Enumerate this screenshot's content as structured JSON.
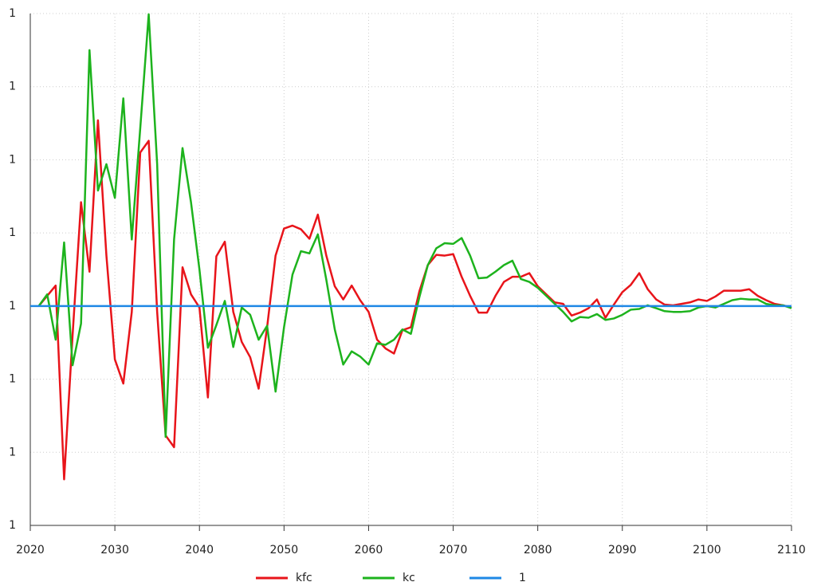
{
  "chart_data": {
    "type": "line",
    "x": [
      2020,
      2021,
      2022,
      2023,
      2024,
      2025,
      2026,
      2027,
      2028,
      2029,
      2030,
      2031,
      2032,
      2033,
      2034,
      2035,
      2036,
      2037,
      2038,
      2039,
      2040,
      2041,
      2042,
      2043,
      2044,
      2045,
      2046,
      2047,
      2048,
      2049,
      2050,
      2051,
      2052,
      2053,
      2054,
      2055,
      2056,
      2057,
      2058,
      2059,
      2060,
      2061,
      2062,
      2063,
      2064,
      2065,
      2066,
      2067,
      2068,
      2069,
      2070,
      2071,
      2072,
      2073,
      2074,
      2075,
      2076,
      2077,
      2078,
      2079,
      2080,
      2081,
      2082,
      2083,
      2084,
      2085,
      2086,
      2087,
      2088,
      2089,
      2090,
      2091,
      2092,
      2093,
      2094,
      2095,
      2096,
      2097,
      2098,
      2099,
      2100,
      2101,
      2102,
      2103,
      2104,
      2105,
      2106,
      2107,
      2108,
      2109,
      2110
    ],
    "series": [
      {
        "name": "kfc",
        "color": "#e8141a",
        "values": [
          null,
          1,
          1.000014,
          1.000028,
          0.999763,
          0.99996,
          1.000142,
          1.000047,
          1.000254,
          1.000069,
          0.999927,
          0.999894,
          0.999992,
          1.00021,
          1.000226,
          0.999992,
          0.999823,
          0.999807,
          1.000053,
          1.000016,
          0.999998,
          0.999875,
          1.000068,
          1.000088,
          0.999992,
          0.999951,
          0.99993,
          0.999887,
          0.999971,
          1.000069,
          1.000106,
          1.00011,
          1.000105,
          1.000092,
          1.000125,
          1.000069,
          1.000027,
          1.000009,
          1.000028,
          1.000008,
          0.999992,
          0.999954,
          0.999942,
          0.999935,
          0.999967,
          0.999971,
          1.00002,
          1.000056,
          1.00007,
          1.000069,
          1.000071,
          1.00004,
          1.000014,
          0.999991,
          0.999991,
          1.000014,
          1.000033,
          1.00004,
          1.00004,
          1.000045,
          1.000027,
          1.000016,
          1.000005,
          1.000003,
          0.999987,
          0.999991,
          0.999997,
          1.000009,
          0.999984,
          1.000002,
          1.000019,
          1.000029,
          1.000045,
          1.000023,
          1.000009,
          1.000002,
          1.000001,
          1.000003,
          1.000005,
          1.000009,
          1.000007,
          1.000013,
          1.000021,
          1.000021,
          1.000021,
          1.000023,
          1.000014,
          1.000008,
          1.000003,
          1.000001,
          0.999998
        ]
      },
      {
        "name": "kc",
        "color": "#1db31d",
        "values": [
          null,
          1,
          1.000016,
          0.999954,
          1.000087,
          0.999919,
          0.999976,
          1.00035,
          1.000158,
          1.000194,
          1.000148,
          1.000284,
          1.000091,
          1.000243,
          1.000399,
          1.000194,
          0.999821,
          1.000091,
          1.000216,
          1.000142,
          1.00005,
          0.999943,
          0.999974,
          1.000007,
          0.999944,
          0.999998,
          0.999988,
          0.999954,
          0.999973,
          0.999883,
          0.999971,
          1.000043,
          1.000075,
          1.000072,
          1.000098,
          1.000036,
          0.999968,
          0.99992,
          0.999938,
          0.999931,
          0.99992,
          0.999949,
          0.999947,
          0.999954,
          0.999968,
          0.999962,
          1.000012,
          1.000056,
          1.000079,
          1.000086,
          1.000085,
          1.000093,
          1.000069,
          1.000038,
          1.000039,
          1.000047,
          1.000056,
          1.000062,
          1.000037,
          1.000033,
          1.000025,
          1.000014,
          1.000003,
          0.999992,
          0.999979,
          0.999985,
          0.999984,
          0.999989,
          0.999981,
          0.999983,
          0.999988,
          0.999995,
          0.999996,
          1.000001,
          0.999997,
          0.999993,
          0.999992,
          0.999992,
          0.999993,
          0.999998,
          1,
          0.999998,
          1.000003,
          1.000008,
          1.00001,
          1.000009,
          1.000009,
          1.000003,
          1.000001,
          1.000001,
          0.999997
        ]
      },
      {
        "name": "1",
        "color": "#1e88e5",
        "values": [
          1,
          1,
          1,
          1,
          1,
          1,
          1,
          1,
          1,
          1,
          1,
          1,
          1,
          1,
          1,
          1,
          1,
          1,
          1,
          1,
          1,
          1,
          1,
          1,
          1,
          1,
          1,
          1,
          1,
          1,
          1,
          1,
          1,
          1,
          1,
          1,
          1,
          1,
          1,
          1,
          1,
          1,
          1,
          1,
          1,
          1,
          1,
          1,
          1,
          1,
          1,
          1,
          1,
          1,
          1,
          1,
          1,
          1,
          1,
          1,
          1,
          1,
          1,
          1,
          1,
          1,
          1,
          1,
          1,
          1,
          1,
          1,
          1,
          1,
          1,
          1,
          1,
          1,
          1,
          1,
          1,
          1,
          1,
          1,
          1,
          1,
          1,
          1,
          1,
          1,
          1
        ]
      }
    ],
    "xlim": [
      2020,
      2110
    ],
    "xticks": [
      2020,
      2030,
      2040,
      2050,
      2060,
      2070,
      2080,
      2090,
      2100,
      2110
    ],
    "ylim": [
      0.9997,
      1.0004
    ],
    "yticks": [
      {
        "value": 0.9997,
        "label": "1"
      },
      {
        "value": 0.9998,
        "label": "1"
      },
      {
        "value": 0.9999,
        "label": "1"
      },
      {
        "value": 1,
        "label": "1"
      },
      {
        "value": 1.0001,
        "label": "1"
      },
      {
        "value": 1.0002,
        "label": "1"
      },
      {
        "value": 1.0003,
        "label": "1"
      },
      {
        "value": 1.0004,
        "label": "1"
      }
    ],
    "grid": true,
    "legend": "bottom"
  }
}
